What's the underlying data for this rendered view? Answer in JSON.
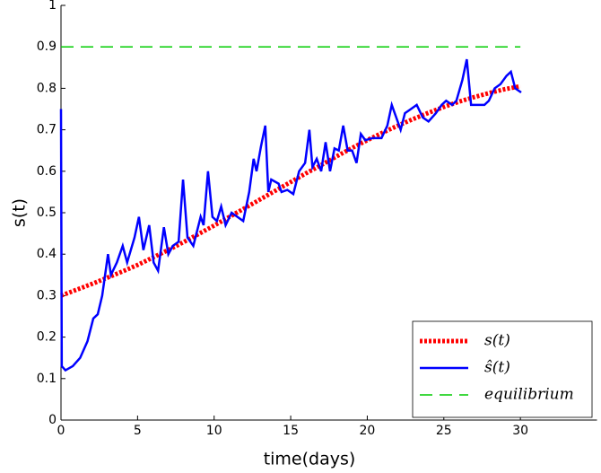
{
  "chart_data": {
    "type": "line",
    "xlabel": "time(days)",
    "ylabel": "s(t)",
    "xlim": [
      0,
      35
    ],
    "ylim": [
      0,
      1
    ],
    "xticks": [
      0,
      5,
      10,
      15,
      20,
      25,
      30
    ],
    "yticks": [
      0,
      0.1,
      0.2,
      0.3,
      0.4,
      0.5,
      0.6,
      0.7,
      0.8,
      0.9,
      1
    ],
    "legend": "lower right",
    "series": [
      {
        "name": "s(t)",
        "color": "#ff0000",
        "style": "dotted",
        "x": [
          0,
          1,
          2,
          3,
          4,
          5,
          6,
          7,
          8,
          9,
          10,
          11,
          12,
          13,
          14,
          15,
          16,
          17,
          18,
          19,
          20,
          21,
          22,
          23,
          24,
          25,
          26,
          27,
          28,
          29,
          30
        ],
        "values": [
          0.3,
          0.314,
          0.328,
          0.343,
          0.358,
          0.374,
          0.392,
          0.41,
          0.429,
          0.449,
          0.469,
          0.49,
          0.511,
          0.532,
          0.553,
          0.574,
          0.595,
          0.615,
          0.636,
          0.656,
          0.675,
          0.693,
          0.71,
          0.726,
          0.741,
          0.755,
          0.768,
          0.779,
          0.789,
          0.798,
          0.805
        ]
      },
      {
        "name": "ŝ(t)",
        "color": "#0000ff",
        "style": "solid",
        "x": [
          0,
          0.05,
          0.29,
          0.77,
          1.25,
          1.73,
          2.11,
          2.4,
          2.69,
          3.07,
          3.26,
          3.65,
          4.03,
          4.32,
          4.8,
          5.09,
          5.38,
          5.76,
          6.05,
          6.34,
          6.72,
          7.01,
          7.3,
          7.68,
          7.97,
          8.26,
          8.64,
          9.12,
          9.31,
          9.6,
          9.89,
          10.18,
          10.46,
          10.75,
          11.14,
          11.52,
          11.9,
          12.29,
          12.58,
          12.77,
          13.06,
          13.34,
          13.54,
          13.73,
          14.21,
          14.4,
          14.78,
          15.17,
          15.55,
          15.94,
          16.22,
          16.42,
          16.7,
          16.99,
          17.28,
          17.57,
          17.86,
          18.14,
          18.43,
          18.72,
          19.01,
          19.3,
          19.58,
          19.87,
          20.35,
          20.93,
          21.31,
          21.6,
          21.89,
          22.18,
          22.46,
          22.85,
          23.23,
          23.62,
          24,
          24.48,
          24.86,
          25.15,
          25.54,
          25.82,
          26.21,
          26.5,
          26.78,
          27.17,
          27.65,
          27.94,
          28.32,
          28.7,
          29.09,
          29.38,
          29.66,
          30.05
        ],
        "values": [
          0.75,
          0.13,
          0.12,
          0.13,
          0.15,
          0.19,
          0.245,
          0.255,
          0.3,
          0.4,
          0.35,
          0.38,
          0.42,
          0.38,
          0.44,
          0.49,
          0.41,
          0.47,
          0.38,
          0.36,
          0.465,
          0.4,
          0.42,
          0.43,
          0.58,
          0.44,
          0.42,
          0.49,
          0.47,
          0.6,
          0.49,
          0.48,
          0.515,
          0.47,
          0.5,
          0.49,
          0.48,
          0.55,
          0.63,
          0.6,
          0.66,
          0.71,
          0.55,
          0.58,
          0.57,
          0.55,
          0.555,
          0.545,
          0.6,
          0.62,
          0.7,
          0.61,
          0.63,
          0.6,
          0.67,
          0.6,
          0.655,
          0.65,
          0.71,
          0.65,
          0.65,
          0.62,
          0.69,
          0.675,
          0.68,
          0.68,
          0.71,
          0.76,
          0.73,
          0.7,
          0.74,
          0.75,
          0.76,
          0.73,
          0.72,
          0.74,
          0.76,
          0.77,
          0.76,
          0.77,
          0.82,
          0.87,
          0.76,
          0.76,
          0.76,
          0.77,
          0.8,
          0.81,
          0.83,
          0.84,
          0.8,
          0.79
        ]
      },
      {
        "name": "equilibrium",
        "color": "#00cc00",
        "style": "dashed",
        "x": [
          0,
          30
        ],
        "values": [
          0.9,
          0.9
        ]
      }
    ]
  }
}
